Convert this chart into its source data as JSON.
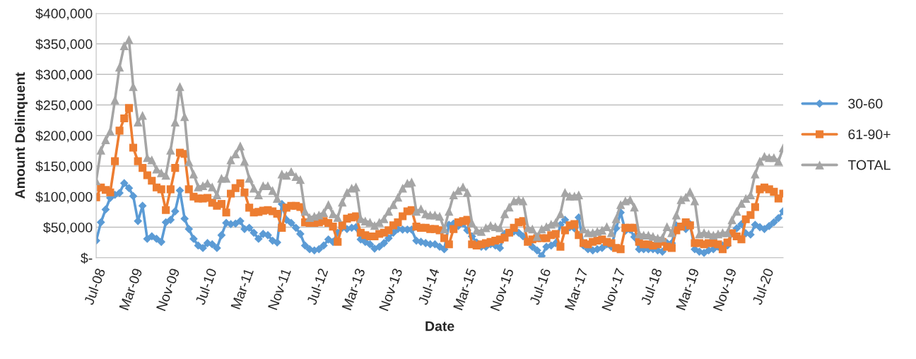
{
  "chart_data": {
    "type": "line",
    "xlabel": "Date",
    "ylabel": "Amount Delinquent",
    "x": [
      "2008-07",
      "2008-08",
      "2008-09",
      "2008-10",
      "2008-11",
      "2008-12",
      "2009-01",
      "2009-02",
      "2009-03",
      "2009-04",
      "2009-05",
      "2009-06",
      "2009-07",
      "2009-08",
      "2009-09",
      "2009-10",
      "2009-11",
      "2009-12",
      "2010-01",
      "2010-02",
      "2010-03",
      "2010-04",
      "2010-05",
      "2010-06",
      "2010-07",
      "2010-08",
      "2010-09",
      "2010-10",
      "2010-11",
      "2010-12",
      "2011-01",
      "2011-02",
      "2011-03",
      "2011-04",
      "2011-05",
      "2011-06",
      "2011-07",
      "2011-08",
      "2011-09",
      "2011-10",
      "2011-11",
      "2011-12",
      "2012-01",
      "2012-02",
      "2012-03",
      "2012-04",
      "2012-05",
      "2012-06",
      "2012-07",
      "2012-08",
      "2012-09",
      "2012-10",
      "2012-11",
      "2012-12",
      "2013-01",
      "2013-02",
      "2013-03",
      "2013-04",
      "2013-05",
      "2013-06",
      "2013-07",
      "2013-08",
      "2013-09",
      "2013-10",
      "2013-11",
      "2013-12",
      "2014-01",
      "2014-02",
      "2014-03",
      "2014-04",
      "2014-05",
      "2014-06",
      "2014-07",
      "2014-08",
      "2014-09",
      "2014-10",
      "2014-11",
      "2014-12",
      "2015-01",
      "2015-02",
      "2015-03",
      "2015-04",
      "2015-05",
      "2015-06",
      "2015-07",
      "2015-08",
      "2015-09",
      "2015-10",
      "2015-11",
      "2015-12",
      "2016-01",
      "2016-02",
      "2016-03",
      "2016-04",
      "2016-05",
      "2016-06",
      "2016-07",
      "2016-08",
      "2016-09",
      "2016-10",
      "2016-11",
      "2016-12",
      "2017-01",
      "2017-02",
      "2017-03",
      "2017-04",
      "2017-05",
      "2017-06",
      "2017-07",
      "2017-08",
      "2017-09",
      "2017-10",
      "2017-11",
      "2017-12",
      "2018-01",
      "2018-02",
      "2018-03",
      "2018-04",
      "2018-05",
      "2018-06",
      "2018-07",
      "2018-08",
      "2018-09",
      "2018-10",
      "2018-11",
      "2018-12",
      "2019-01",
      "2019-02",
      "2019-03",
      "2019-04",
      "2019-05",
      "2019-06",
      "2019-07",
      "2019-08",
      "2019-09",
      "2019-10",
      "2019-11",
      "2019-12",
      "2020-01",
      "2020-02",
      "2020-03",
      "2020-04",
      "2020-05",
      "2020-06",
      "2020-07",
      "2020-08",
      "2020-09",
      "2020-10",
      "2020-11"
    ],
    "series": [
      {
        "name": "30-60",
        "color": "#5b9bd5",
        "marker": "diamond",
        "values": [
          28000,
          58000,
          79000,
          98000,
          103000,
          106000,
          122000,
          114000,
          101000,
          60000,
          85000,
          31000,
          35000,
          31000,
          26000,
          58000,
          62000,
          76000,
          110000,
          64000,
          47000,
          31000,
          20000,
          16000,
          24000,
          22000,
          16000,
          37000,
          57000,
          55000,
          56000,
          60000,
          47000,
          49000,
          41000,
          31000,
          39000,
          37000,
          28000,
          25000,
          88000,
          62000,
          57000,
          49000,
          39000,
          20000,
          14000,
          12000,
          14000,
          20000,
          30000,
          26000,
          41000,
          49000,
          47000,
          49000,
          50000,
          30000,
          26000,
          22000,
          15000,
          18000,
          24000,
          32000,
          41000,
          47000,
          46000,
          46000,
          46000,
          28000,
          26000,
          24000,
          22000,
          22000,
          18000,
          14000,
          54000,
          56000,
          52000,
          56000,
          45000,
          35000,
          25000,
          18000,
          18000,
          22000,
          20000,
          16000,
          39000,
          41000,
          43000,
          41000,
          35000,
          26000,
          18000,
          12000,
          3000,
          18000,
          20000,
          24000,
          54000,
          62000,
          50000,
          48000,
          66000,
          20000,
          14000,
          12000,
          14000,
          16000,
          22000,
          18000,
          48000,
          74000,
          44000,
          46000,
          34000,
          14000,
          14000,
          14000,
          14000,
          12000,
          10000,
          24000,
          24000,
          53000,
          51000,
          47000,
          55000,
          14000,
          10000,
          8000,
          12000,
          14000,
          18000,
          20000,
          20000,
          40000,
          48000,
          55000,
          40000,
          38000,
          54000,
          50000,
          47000,
          52000,
          58000,
          65000,
          76000
        ]
      },
      {
        "name": "61-90+",
        "color": "#ed7d31",
        "marker": "square",
        "values": [
          99000,
          115000,
          111000,
          107000,
          158000,
          208000,
          228000,
          245000,
          180000,
          158000,
          147000,
          135000,
          126000,
          115000,
          112000,
          78000,
          112000,
          147000,
          172000,
          170000,
          112000,
          100000,
          97000,
          97000,
          98000,
          90000,
          85000,
          88000,
          74000,
          105000,
          114000,
          122000,
          107000,
          82000,
          74000,
          75000,
          77000,
          78000,
          76000,
          72000,
          49000,
          82000,
          85000,
          85000,
          83000,
          58000,
          57000,
          57000,
          58000,
          60000,
          57000,
          51000,
          26000,
          53000,
          64000,
          66000,
          68000,
          41000,
          37000,
          35000,
          35000,
          39000,
          41000,
          45000,
          53000,
          58000,
          68000,
          76000,
          78000,
          51000,
          49000,
          49000,
          47000,
          47000,
          45000,
          32000,
          22000,
          47000,
          58000,
          60000,
          62000,
          22000,
          20000,
          22000,
          24000,
          26000,
          28000,
          30000,
          33000,
          41000,
          49000,
          58000,
          60000,
          26000,
          30000,
          32000,
          32000,
          32000,
          37000,
          39000,
          18000,
          45000,
          53000,
          55000,
          37000,
          24000,
          22000,
          26000,
          28000,
          30000,
          26000,
          24000,
          16000,
          14000,
          49000,
          49000,
          49000,
          26000,
          22000,
          22000,
          20000,
          22000,
          26000,
          18000,
          16000,
          45000,
          51000,
          58000,
          53000,
          24000,
          24000,
          22000,
          24000,
          24000,
          22000,
          14000,
          25000,
          40000,
          35000,
          30000,
          63000,
          70000,
          83000,
          112000,
          115000,
          112000,
          108000,
          97000,
          105000
        ]
      },
      {
        "name": "TOTAL",
        "color": "#a5a5a5",
        "marker": "triangle",
        "values": [
          126000,
          176000,
          193000,
          207000,
          258000,
          312000,
          347000,
          357000,
          280000,
          222000,
          233000,
          164000,
          160000,
          145000,
          139000,
          135000,
          176000,
          222000,
          280000,
          231000,
          157000,
          137000,
          116000,
          118000,
          122000,
          116000,
          103000,
          130000,
          130000,
          160000,
          170000,
          183000,
          158000,
          130000,
          114000,
          103000,
          118000,
          118000,
          110000,
          97000,
          137000,
          135000,
          141000,
          133000,
          128000,
          76000,
          66000,
          68000,
          70000,
          74000,
          87000,
          72000,
          66000,
          91000,
          107000,
          114000,
          116000,
          64000,
          60000,
          58000,
          53000,
          58000,
          64000,
          76000,
          87000,
          99000,
          114000,
          122000,
          124000,
          76000,
          80000,
          72000,
          70000,
          70000,
          68000,
          47000,
          76000,
          103000,
          110000,
          116000,
          107000,
          57000,
          45000,
          43000,
          49000,
          53000,
          51000,
          49000,
          72000,
          83000,
          93000,
          95000,
          93000,
          49000,
          47000,
          35000,
          47000,
          51000,
          55000,
          58000,
          72000,
          107000,
          101000,
          101000,
          103000,
          47000,
          41000,
          41000,
          43000,
          45000,
          51000,
          41000,
          64000,
          87000,
          93000,
          95000,
          83000,
          39000,
          37000,
          37000,
          35000,
          32000,
          33000,
          51000,
          41000,
          70000,
          95000,
          99000,
          108000,
          93000,
          39000,
          41000,
          39000,
          37000,
          39000,
          41000,
          41000,
          62000,
          76000,
          89000,
          97000,
          103000,
          137000,
          158000,
          166000,
          164000,
          164000,
          158000,
          180000
        ]
      }
    ],
    "xlim": [
      "2008-07",
      "2020-11"
    ],
    "xticks": [
      {
        "value": "2008-07",
        "label": "Jul-08"
      },
      {
        "value": "2009-03",
        "label": "Mar-09"
      },
      {
        "value": "2009-11",
        "label": "Nov-09"
      },
      {
        "value": "2010-07",
        "label": "Jul-10"
      },
      {
        "value": "2011-03",
        "label": "Mar-11"
      },
      {
        "value": "2011-11",
        "label": "Nov-11"
      },
      {
        "value": "2012-07",
        "label": "Jul-12"
      },
      {
        "value": "2013-03",
        "label": "Mar-13"
      },
      {
        "value": "2013-11",
        "label": "Nov-13"
      },
      {
        "value": "2014-07",
        "label": "Jul-14"
      },
      {
        "value": "2015-03",
        "label": "Mar-15"
      },
      {
        "value": "2015-11",
        "label": "Nov-15"
      },
      {
        "value": "2016-07",
        "label": "Jul-16"
      },
      {
        "value": "2017-03",
        "label": "Mar-17"
      },
      {
        "value": "2017-11",
        "label": "Nov-17"
      },
      {
        "value": "2018-07",
        "label": "Jul-18"
      },
      {
        "value": "2019-03",
        "label": "Mar-19"
      },
      {
        "value": "2019-11",
        "label": "Nov-19"
      },
      {
        "value": "2020-07",
        "label": "Jul-20"
      }
    ],
    "ylim": [
      0,
      400000
    ],
    "yticks": [
      {
        "value": 0,
        "label": "$-"
      },
      {
        "value": 50000,
        "label": "$50,000"
      },
      {
        "value": 100000,
        "label": "$100,000"
      },
      {
        "value": 150000,
        "label": "$150,000"
      },
      {
        "value": 200000,
        "label": "$200,000"
      },
      {
        "value": 250000,
        "label": "$250,000"
      },
      {
        "value": 300000,
        "label": "$300,000"
      },
      {
        "value": 350000,
        "label": "$350,000"
      },
      {
        "value": 400000,
        "label": "$400,000"
      }
    ],
    "grid": "y",
    "legend": "right"
  }
}
